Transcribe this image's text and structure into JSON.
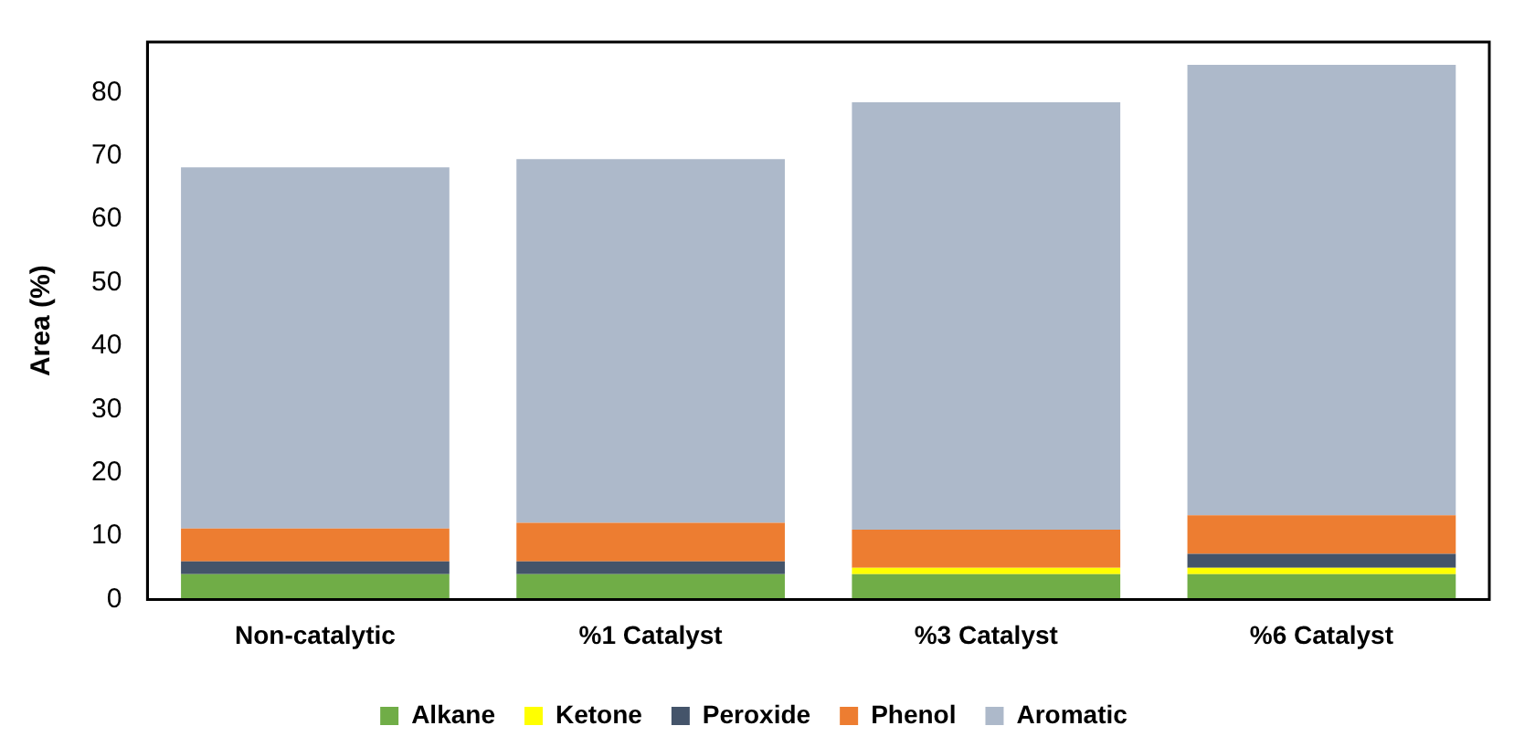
{
  "chart_data": {
    "type": "bar",
    "stacked": true,
    "ylabel": "Area (%)",
    "categories": [
      "Non-catalytic",
      "%1 Catalyst",
      "%3 Catalyst",
      "%6 Catalyst"
    ],
    "series": [
      {
        "name": "Alkane",
        "color": "#70ad47",
        "values": [
          4,
          4,
          4,
          4
        ]
      },
      {
        "name": "Ketone",
        "color": "#ffff00",
        "values": [
          0,
          0,
          1,
          1
        ]
      },
      {
        "name": "Peroxide",
        "color": "#44546a",
        "values": [
          2,
          2,
          0,
          2.2
        ]
      },
      {
        "name": "Phenol",
        "color": "#ed7d31",
        "values": [
          5.2,
          6.1,
          6,
          6.1
        ]
      },
      {
        "name": "Aromatic",
        "color": "#adb9ca",
        "values": [
          57,
          57.4,
          67.5,
          71.1
        ]
      }
    ],
    "ylim": [
      0,
      88
    ],
    "yticks": [
      0,
      10,
      20,
      30,
      40,
      50,
      60,
      70,
      80
    ],
    "grid": false,
    "legend": "bottom"
  }
}
